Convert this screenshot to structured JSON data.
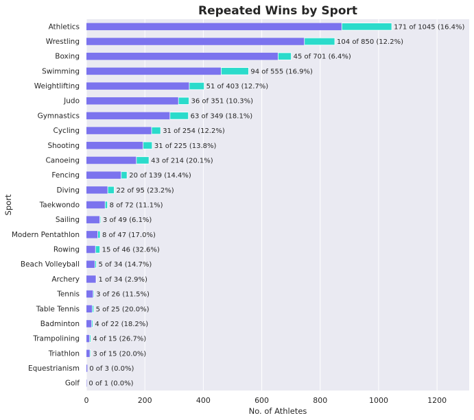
{
  "chart_data": {
    "type": "bar",
    "orientation": "horizontal",
    "stacked": true,
    "title": "Repeated Wins by Sport",
    "xlabel": "No. of Athletes",
    "ylabel": "Sport",
    "xlim": [
      0,
      1310
    ],
    "xticks": [
      0,
      200,
      400,
      600,
      800,
      1000,
      1200
    ],
    "grid": true,
    "background": "#eaeaf2",
    "colors": {
      "base": "#7b73ee",
      "repeat": "#2bdbcb",
      "grid": "#ffffff"
    },
    "categories": [
      "Athletics",
      "Wrestling",
      "Boxing",
      "Swimming",
      "Weightlifting",
      "Judo",
      "Gymnastics",
      "Cycling",
      "Shooting",
      "Canoeing",
      "Fencing",
      "Diving",
      "Taekwondo",
      "Sailing",
      "Modern Pentathlon",
      "Rowing",
      "Beach Volleyball",
      "Archery",
      "Tennis",
      "Table Tennis",
      "Badminton",
      "Trampolining",
      "Triathlon",
      "Equestrianism",
      "Golf"
    ],
    "series": [
      {
        "values": [
          874,
          746,
          656,
          461,
          352,
          315,
          286,
          223,
          194,
          171,
          119,
          73,
          64,
          46,
          39,
          31,
          29,
          33,
          23,
          20,
          18,
          11,
          12,
          3,
          1
        ]
      },
      {
        "values": [
          171,
          104,
          45,
          94,
          51,
          36,
          63,
          31,
          31,
          43,
          20,
          22,
          8,
          3,
          8,
          15,
          5,
          1,
          3,
          5,
          4,
          4,
          3,
          0,
          0
        ]
      }
    ],
    "data_labels": [
      "171 of 1045 (16.4%)",
      "104 of 850 (12.2%)",
      "45 of 701 (6.4%)",
      "94 of 555 (16.9%)",
      "51 of 403 (12.7%)",
      "36 of 351 (10.3%)",
      "63 of 349 (18.1%)",
      "31 of 254 (12.2%)",
      "31 of 225 (13.8%)",
      "43 of 214 (20.1%)",
      "20 of 139 (14.4%)",
      "22 of 95 (23.2%)",
      "8 of 72 (11.1%)",
      "3 of 49 (6.1%)",
      "8 of 47 (17.0%)",
      "15 of 46 (32.6%)",
      "5 of 34 (14.7%)",
      "1 of 34 (2.9%)",
      "3 of 26 (11.5%)",
      "5 of 25 (20.0%)",
      "4 of 22 (18.2%)",
      "4 of 15 (26.7%)",
      "3 of 15 (20.0%)",
      "0 of 3 (0.0%)",
      "0 of 1 (0.0%)"
    ]
  }
}
